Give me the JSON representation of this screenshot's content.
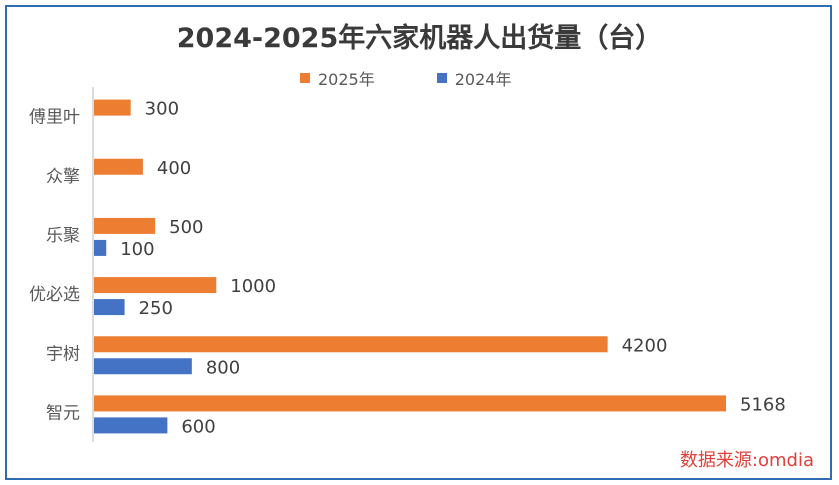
{
  "chart_data": {
    "type": "bar",
    "orientation": "horizontal",
    "title": "2024-2025年六家机器人出货量（台）",
    "categories": [
      "傅里叶",
      "众擎",
      "乐聚",
      "优必选",
      "宇树",
      "智元"
    ],
    "series": [
      {
        "name": "2025年",
        "color": "#ed7d31",
        "values": [
          300,
          400,
          500,
          1000,
          4200,
          5168
        ]
      },
      {
        "name": "2024年",
        "color": "#4472c4",
        "values": [
          null,
          null,
          100,
          250,
          800,
          600
        ]
      }
    ],
    "xlim": [
      0,
      6000
    ],
    "grid": false,
    "legend_position": "top",
    "data_labels": true
  },
  "source_text": "数据来源:omdia",
  "colors": {
    "frame": "#2f6db3",
    "source": "#e0403a"
  }
}
